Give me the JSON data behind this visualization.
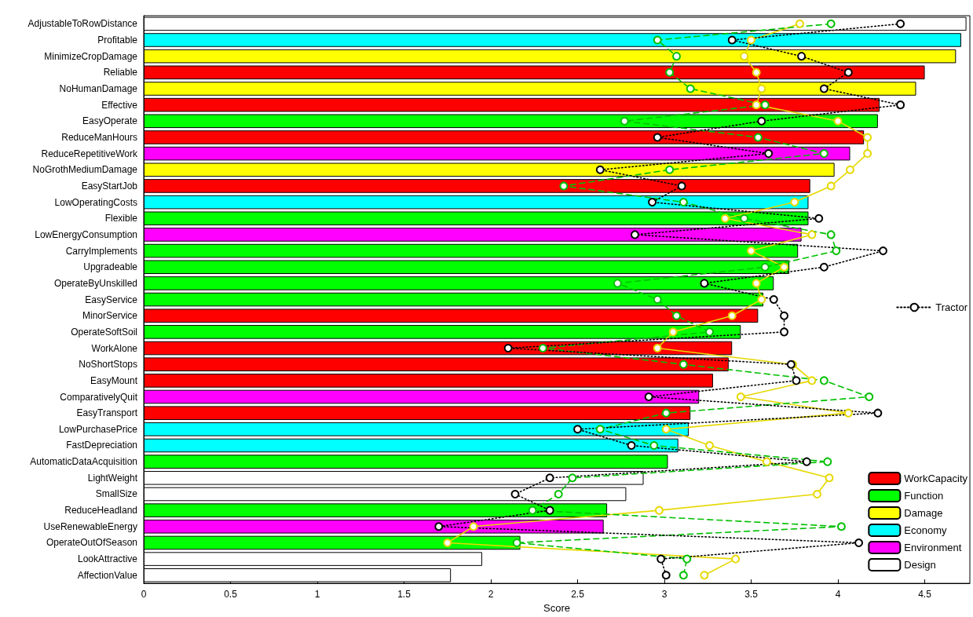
{
  "chart_data": {
    "type": "bar",
    "orientation": "horizontal",
    "xlabel": "Score",
    "xlim": [
      0,
      4.76
    ],
    "xticks": [
      0,
      0.5,
      1,
      1.5,
      2,
      2.5,
      3,
      3.5,
      4,
      4.5
    ],
    "legend": "right",
    "marker": "circle",
    "grid": false,
    "categories": [
      "AdjustableToRowDistance",
      "Profitable",
      "MinimizeCropDamage",
      "Reliable",
      "NoHumanDamage",
      "Effective",
      "EasyOperate",
      "ReduceManHours",
      "ReduceRepetitiveWork",
      "NoGrothMediumDamage",
      "EasyStartJob",
      "LowOperatingCosts",
      "Flexible",
      "LowEnergyConsumption",
      "CarryImplements",
      "Upgradeable",
      "OperateByUnskilled",
      "EasyService",
      "MinorService",
      "OperateSoftSoil",
      "WorkAlone",
      "NoShortStops",
      "EasyMount",
      "ComparativelyQuit",
      "EasyTransport",
      "LowPurchasePrice",
      "FastDepreciation",
      "AutomaticDataAcquisition",
      "LightWeight",
      "SmallSize",
      "ReduceHeadland",
      "UseRenewableEnergy",
      "OperateOutOfSeason",
      "LookAttractive",
      "AffectionValue"
    ],
    "series": [
      {
        "name": "WorkCapacity",
        "color": "#ff0000",
        "values": [
          null,
          null,
          null,
          4.5,
          null,
          4.24,
          null,
          4.15,
          null,
          null,
          3.84,
          null,
          null,
          null,
          null,
          null,
          null,
          null,
          3.54,
          null,
          3.39,
          3.37,
          3.28,
          null,
          3.15,
          null,
          null,
          null,
          null,
          null,
          null,
          null,
          null,
          null,
          null
        ]
      },
      {
        "name": "Function",
        "color": "#00ff00",
        "values": [
          null,
          null,
          null,
          null,
          null,
          null,
          4.23,
          null,
          null,
          null,
          null,
          null,
          3.83,
          null,
          3.77,
          3.72,
          3.63,
          3.57,
          null,
          3.44,
          null,
          null,
          null,
          null,
          null,
          null,
          null,
          3.02,
          null,
          null,
          2.67,
          null,
          2.17,
          null,
          null
        ]
      },
      {
        "name": "Damage",
        "color": "#ffff00",
        "values": [
          null,
          null,
          4.68,
          null,
          4.45,
          null,
          null,
          null,
          null,
          3.98,
          null,
          null,
          null,
          null,
          null,
          null,
          null,
          null,
          null,
          null,
          null,
          null,
          null,
          null,
          null,
          null,
          null,
          null,
          null,
          null,
          null,
          null,
          null,
          null,
          null
        ]
      },
      {
        "name": "Economy",
        "color": "#00ffff",
        "values": [
          null,
          4.71,
          null,
          null,
          null,
          null,
          null,
          null,
          null,
          null,
          null,
          3.83,
          null,
          null,
          null,
          null,
          null,
          null,
          null,
          null,
          null,
          null,
          null,
          null,
          null,
          3.14,
          3.08,
          null,
          null,
          null,
          null,
          null,
          null,
          null,
          null
        ]
      },
      {
        "name": "Environment",
        "color": "#ff00ff",
        "values": [
          null,
          null,
          null,
          null,
          null,
          null,
          null,
          null,
          4.07,
          null,
          null,
          null,
          null,
          3.79,
          null,
          null,
          null,
          null,
          null,
          null,
          null,
          null,
          null,
          3.2,
          null,
          null,
          null,
          null,
          null,
          null,
          null,
          2.65,
          null,
          null,
          null
        ]
      },
      {
        "name": "Design",
        "color": "#ffffff",
        "values": [
          4.74,
          null,
          null,
          null,
          null,
          null,
          null,
          null,
          null,
          null,
          null,
          null,
          null,
          null,
          null,
          null,
          null,
          null,
          null,
          null,
          null,
          null,
          null,
          null,
          null,
          null,
          null,
          null,
          2.88,
          2.78,
          null,
          null,
          null,
          1.95,
          1.77
        ]
      },
      {
        "type": "line",
        "color": "#e6d800",
        "line_style": "solid",
        "values": [
          3.78,
          3.5,
          3.46,
          3.53,
          3.56,
          3.53,
          4.0,
          4.17,
          4.17,
          4.07,
          3.96,
          3.75,
          3.35,
          3.85,
          3.5,
          3.69,
          3.53,
          3.56,
          3.39,
          3.05,
          2.96,
          3.74,
          3.85,
          3.44,
          4.06,
          3.01,
          3.26,
          3.59,
          3.95,
          3.88,
          2.97,
          1.9,
          1.75,
          3.41,
          3.23
        ]
      },
      {
        "type": "line",
        "color": "#00c000",
        "line_style": "dashed",
        "values": [
          3.96,
          2.96,
          3.07,
          3.03,
          3.15,
          3.58,
          2.77,
          3.54,
          3.92,
          3.03,
          2.42,
          3.11,
          3.46,
          3.96,
          3.99,
          3.58,
          2.73,
          2.96,
          3.07,
          3.26,
          2.3,
          3.11,
          3.92,
          4.18,
          3.01,
          2.63,
          2.94,
          3.94,
          2.47,
          2.39,
          2.24,
          4.02,
          2.15,
          3.13,
          3.11
        ]
      },
      {
        "type": "line",
        "name": "Tractor",
        "color": "#000000",
        "line_style": "dotted",
        "values": [
          4.36,
          3.39,
          3.79,
          4.06,
          3.92,
          4.36,
          3.56,
          2.96,
          3.6,
          2.63,
          3.1,
          2.93,
          3.89,
          2.83,
          4.26,
          3.92,
          3.23,
          3.63,
          3.69,
          3.69,
          2.1,
          3.73,
          3.76,
          2.91,
          4.23,
          2.5,
          2.81,
          3.82,
          2.34,
          2.14,
          2.34,
          1.7,
          4.12,
          2.98,
          3.01
        ]
      }
    ]
  }
}
